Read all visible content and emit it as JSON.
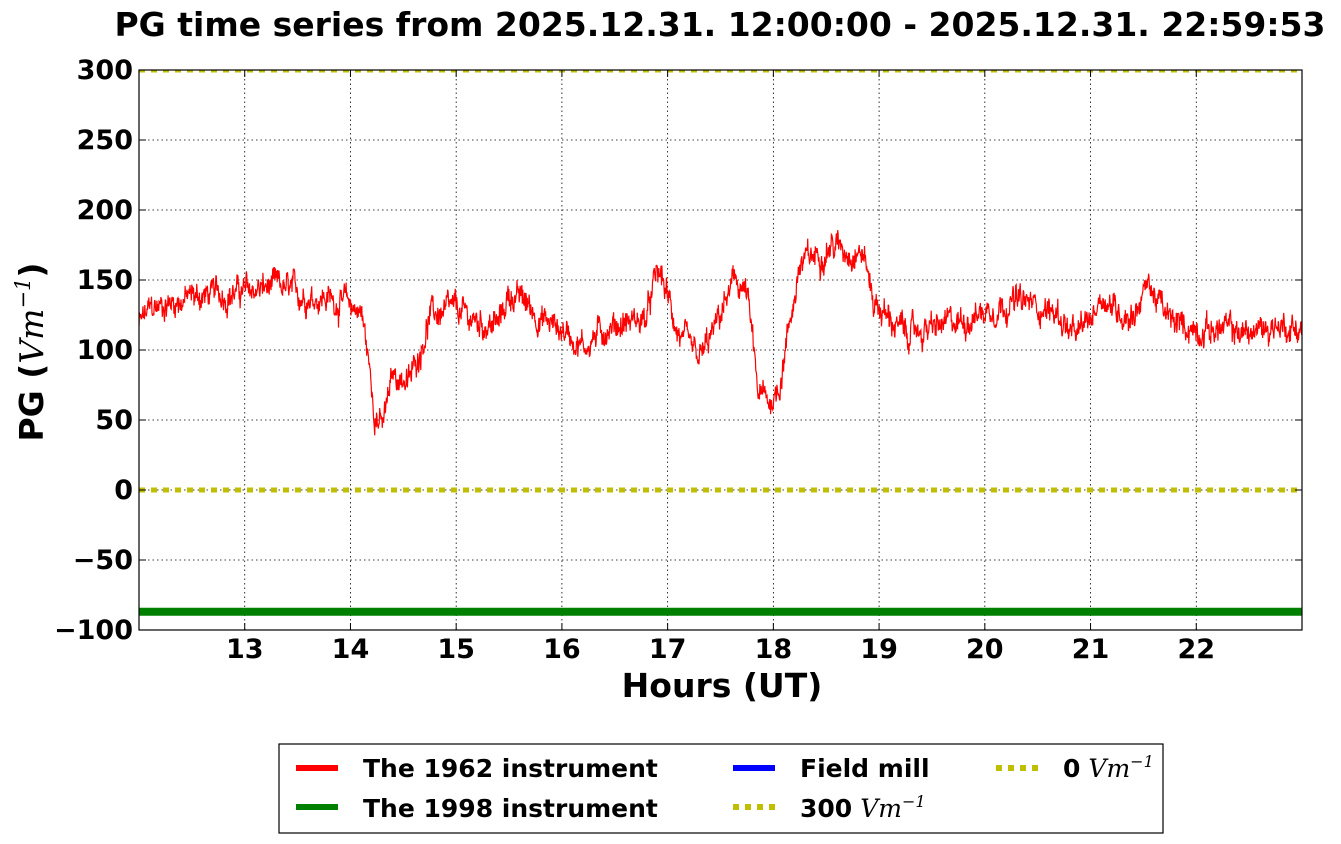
{
  "chart_data": {
    "type": "line",
    "title": "PG time series from 2025.12.31. 12:00:00 - 2025.12.31. 22:59:53",
    "xlabel": "Hours (UT)",
    "ylabel_prefix": "PG (",
    "ylabel_unit": "Vm",
    "ylabel_exp": "−1",
    "ylabel_suffix": ")",
    "xlim": [
      12.0,
      23.0
    ],
    "ylim": [
      -100,
      300
    ],
    "grid": true,
    "legend_position": "bottom-center",
    "x_ticks": [
      13,
      14,
      15,
      16,
      17,
      18,
      19,
      20,
      21,
      22
    ],
    "y_ticks": [
      -100,
      -50,
      0,
      50,
      100,
      150,
      200,
      250,
      300
    ],
    "y_tick_labels": [
      "−100",
      "−50",
      "0",
      "50",
      "100",
      "150",
      "200",
      "250",
      "300"
    ],
    "colors": {
      "red": "#ff0000",
      "green": "#008000",
      "blue": "#0000ff",
      "yellow": "#bfbf00"
    },
    "series": [
      {
        "name": "The 1962 instrument",
        "color": "#ff0000",
        "style": "solid-thin",
        "points": [
          [
            12.0,
            118
          ],
          [
            12.1,
            128
          ],
          [
            12.25,
            133
          ],
          [
            12.5,
            138
          ],
          [
            12.75,
            140
          ],
          [
            13.0,
            142
          ],
          [
            13.3,
            145
          ],
          [
            13.5,
            140
          ],
          [
            13.75,
            138
          ],
          [
            14.0,
            132
          ],
          [
            14.1,
            128
          ],
          [
            14.15,
            105
          ],
          [
            14.22,
            60
          ],
          [
            14.3,
            45
          ],
          [
            14.35,
            62
          ],
          [
            14.4,
            82
          ],
          [
            14.5,
            80
          ],
          [
            14.55,
            76
          ],
          [
            14.65,
            98
          ],
          [
            14.75,
            125
          ],
          [
            15.0,
            128
          ],
          [
            15.2,
            120
          ],
          [
            15.4,
            118
          ],
          [
            15.5,
            140
          ],
          [
            15.65,
            135
          ],
          [
            15.8,
            122
          ],
          [
            16.0,
            115
          ],
          [
            16.1,
            110
          ],
          [
            16.2,
            102
          ],
          [
            16.4,
            115
          ],
          [
            16.6,
            120
          ],
          [
            16.8,
            122
          ],
          [
            16.9,
            155
          ],
          [
            16.95,
            150
          ],
          [
            17.1,
            112
          ],
          [
            17.2,
            100
          ],
          [
            17.3,
            92
          ],
          [
            17.45,
            115
          ],
          [
            17.55,
            135
          ],
          [
            17.65,
            150
          ],
          [
            17.75,
            140
          ],
          [
            17.8,
            108
          ],
          [
            17.85,
            70
          ],
          [
            17.95,
            62
          ],
          [
            18.05,
            72
          ],
          [
            18.15,
            118
          ],
          [
            18.25,
            160
          ],
          [
            18.4,
            168
          ],
          [
            18.55,
            175
          ],
          [
            18.7,
            172
          ],
          [
            18.85,
            170
          ],
          [
            18.95,
            135
          ],
          [
            19.1,
            122
          ],
          [
            19.25,
            112
          ],
          [
            19.5,
            115
          ],
          [
            19.75,
            120
          ],
          [
            20.0,
            128
          ],
          [
            20.25,
            135
          ],
          [
            20.5,
            132
          ],
          [
            20.7,
            125
          ],
          [
            20.85,
            108
          ],
          [
            21.0,
            122
          ],
          [
            21.1,
            140
          ],
          [
            21.25,
            128
          ],
          [
            21.4,
            125
          ],
          [
            21.55,
            148
          ],
          [
            21.6,
            140
          ],
          [
            21.75,
            120
          ],
          [
            22.0,
            115
          ],
          [
            22.25,
            115
          ],
          [
            22.5,
            112
          ],
          [
            22.75,
            118
          ],
          [
            23.0,
            115
          ]
        ]
      },
      {
        "name": "The 1998 instrument",
        "color": "#008000",
        "style": "solid-thick",
        "value": -87
      },
      {
        "name": "Field mill",
        "color": "#0000ff",
        "style": "solid-thick"
      },
      {
        "name": "300 Vm⁻¹",
        "color": "#bfbf00",
        "style": "dotted-thick",
        "value": 300
      },
      {
        "name": "0 Vm⁻¹",
        "color": "#bfbf00",
        "style": "dotted-thick",
        "value": 0
      }
    ],
    "legend": [
      {
        "label": "The 1962 instrument",
        "color": "#ff0000",
        "style": "solid"
      },
      {
        "label": "Field mill",
        "color": "#0000ff",
        "style": "solid"
      },
      {
        "label": "0",
        "unit": "Vm",
        "exp": "−1",
        "color": "#bfbf00",
        "style": "dotted"
      },
      {
        "label": "The 1998 instrument",
        "color": "#008000",
        "style": "solid"
      },
      {
        "label": "300",
        "unit": "Vm",
        "exp": "−1",
        "color": "#bfbf00",
        "style": "dotted"
      }
    ]
  }
}
